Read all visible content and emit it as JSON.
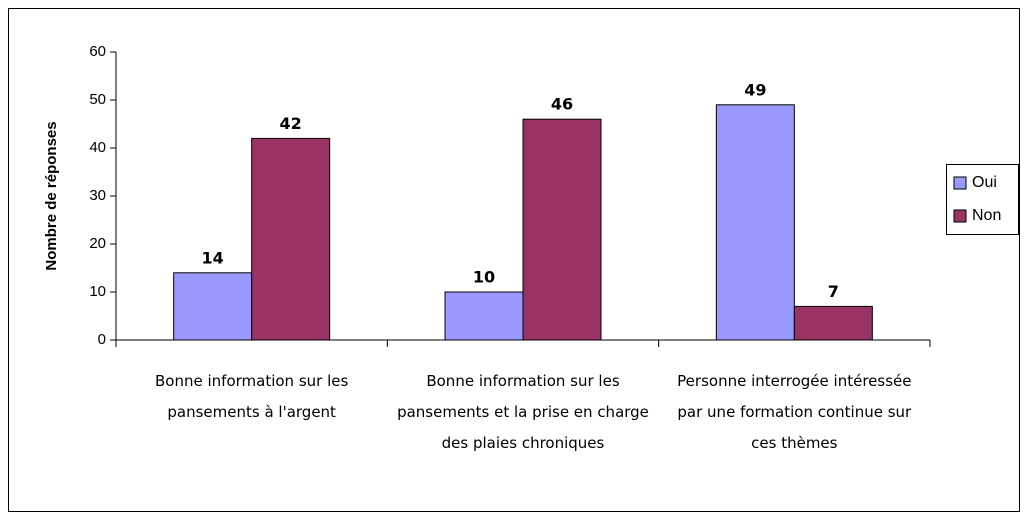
{
  "chart_data": {
    "type": "bar",
    "y_label": "Nombre de réponses",
    "categories": [
      "Bonne information sur les pansements à l'argent",
      "Bonne information sur les pansements et la prise en charge des plaies chroniques",
      "Personne interrogée intéressée par une formation continue sur ces thèmes"
    ],
    "series": [
      {
        "name": "Oui",
        "color": "#9999ff",
        "values": [
          14,
          10,
          49
        ]
      },
      {
        "name": "Non",
        "color": "#993366",
        "values": [
          42,
          46,
          7
        ]
      }
    ],
    "ylim": [
      0,
      60
    ],
    "yticks": [
      0,
      10,
      20,
      30,
      40,
      50,
      60
    ],
    "legend": "right"
  }
}
